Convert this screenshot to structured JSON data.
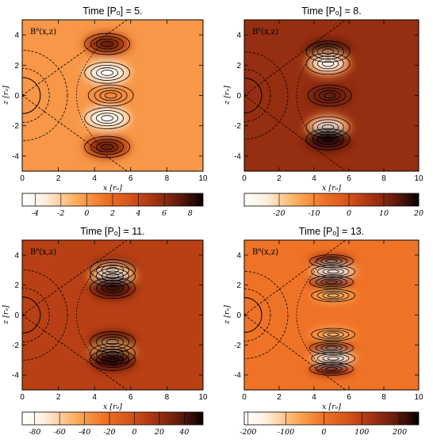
{
  "chart_data": [
    {
      "type": "heatmap",
      "title": "Time [Pₒ] = 5.",
      "panel_label": "Bᶿ(x,z)",
      "xlabel": "x [rₒ]",
      "ylabel": "z [rₒ]",
      "xlim": [
        0,
        10
      ],
      "ylim": [
        -5,
        5
      ],
      "x_ticks": [
        "0",
        "2",
        "4",
        "6",
        "8",
        "10"
      ],
      "y_ticks": [
        "-4",
        "-2",
        "0",
        "2",
        "4"
      ],
      "colorbar_range": [
        -5,
        9
      ],
      "colorbar_ticks": [
        -4,
        -2,
        0,
        2,
        4,
        6,
        8
      ],
      "background_value": 0,
      "lobes": [
        {
          "x": 4.7,
          "z": 3.4,
          "value": 7.5
        },
        {
          "x": 4.7,
          "z": 1.5,
          "value": -4.8
        },
        {
          "x": 4.9,
          "z": 0.0,
          "value": 0.6
        },
        {
          "x": 4.7,
          "z": -1.5,
          "value": -4.8
        },
        {
          "x": 4.7,
          "z": -3.4,
          "value": 7.5
        }
      ]
    },
    {
      "type": "heatmap",
      "title": "Time [Pₒ] = 8.",
      "panel_label": "Bᶿ(x,z)",
      "xlabel": "x [rₒ]",
      "ylabel": "z [rₒ]",
      "xlim": [
        0,
        10
      ],
      "ylim": [
        -5,
        5
      ],
      "x_ticks": [
        "0",
        "2",
        "4",
        "6",
        "8",
        "10"
      ],
      "y_ticks": [
        "-4",
        "-2",
        "0",
        "2",
        "4"
      ],
      "colorbar_range": [
        -30,
        20
      ],
      "colorbar_ticks": [
        -20,
        -10,
        0,
        10,
        20
      ],
      "background_value": 8,
      "lobes": [
        {
          "x": 4.8,
          "z": 2.9,
          "value": 20
        },
        {
          "x": 4.8,
          "z": 2.1,
          "value": -28
        },
        {
          "x": 4.9,
          "z": 0.0,
          "value": 14
        },
        {
          "x": 4.8,
          "z": -2.1,
          "value": -28
        },
        {
          "x": 4.8,
          "z": -2.9,
          "value": 20
        }
      ]
    },
    {
      "type": "heatmap",
      "title": "Time [Pₒ] = 11.",
      "panel_label": "Bᶿ(x,z)",
      "xlabel": "x [rₒ]",
      "ylabel": "z [rₒ]",
      "xlim": [
        0,
        10
      ],
      "ylim": [
        -5,
        5
      ],
      "x_ticks": [
        "0",
        "2",
        "4",
        "6",
        "8",
        "10"
      ],
      "y_ticks": [
        "-4",
        "-2",
        "0",
        "2",
        "4"
      ],
      "colorbar_range": [
        -90,
        55
      ],
      "colorbar_ticks": [
        -80,
        -60,
        -40,
        -20,
        0,
        20,
        40
      ],
      "background_value": 8,
      "lobes": [
        {
          "x": 5.0,
          "z": 3.0,
          "value": 52
        },
        {
          "x": 5.0,
          "z": 2.6,
          "value": -85
        },
        {
          "x": 5.0,
          "z": 1.8,
          "value": 48
        },
        {
          "x": 5.0,
          "z": -1.8,
          "value": 48
        },
        {
          "x": 5.0,
          "z": -2.6,
          "value": -85
        },
        {
          "x": 5.0,
          "z": -3.0,
          "value": 52
        }
      ]
    },
    {
      "type": "heatmap",
      "title": "Time [Pₒ] = 13.",
      "panel_label": "Bᶿ(x,z)",
      "xlabel": "x [rₒ]",
      "ylabel": "z [rₒ]",
      "xlim": [
        0,
        10
      ],
      "ylim": [
        -5,
        5
      ],
      "x_ticks": [
        "0",
        "2",
        "4",
        "6",
        "8",
        "10"
      ],
      "y_ticks": [
        "-4",
        "-2",
        "0",
        "2",
        "4"
      ],
      "colorbar_range": [
        -210,
        250
      ],
      "colorbar_ticks": [
        -200,
        -100,
        0,
        100,
        200
      ],
      "background_value": 0,
      "lobes": [
        {
          "x": 5.0,
          "z": 3.6,
          "value": 210
        },
        {
          "x": 5.1,
          "z": 2.9,
          "value": -200
        },
        {
          "x": 5.0,
          "z": 2.2,
          "value": 200
        },
        {
          "x": 5.1,
          "z": 1.3,
          "value": -90
        },
        {
          "x": 5.1,
          "z": -1.3,
          "value": -90
        },
        {
          "x": 5.0,
          "z": -2.2,
          "value": 200
        },
        {
          "x": 5.1,
          "z": -2.9,
          "value": -200
        },
        {
          "x": 5.0,
          "z": -3.6,
          "value": 210
        }
      ]
    }
  ]
}
